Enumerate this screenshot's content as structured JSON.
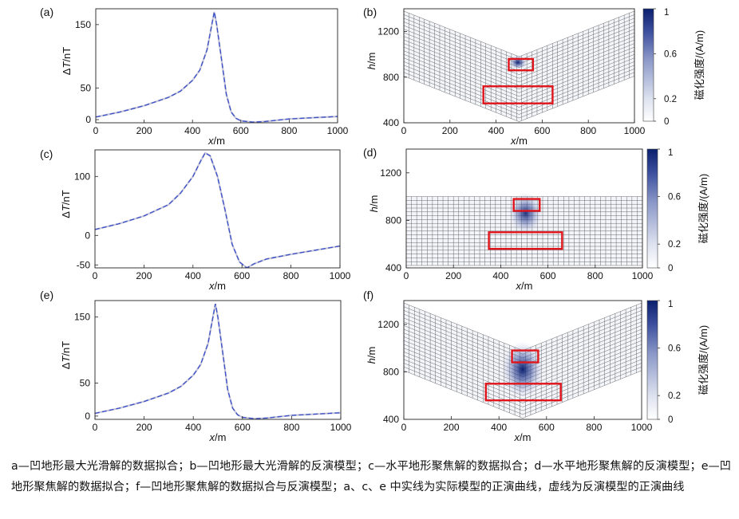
{
  "chart_data": [
    {
      "type": "line",
      "panel": "(a)",
      "xlabel": "x/m",
      "ylabel": "ΔT/nT",
      "xlim": [
        0,
        1000
      ],
      "ylim": [
        -5,
        175
      ],
      "xticks": [
        0,
        200,
        400,
        600,
        800,
        1000
      ],
      "yticks": [
        0,
        50,
        150
      ],
      "series": [
        {
          "style": "solid",
          "color": "#c8c8d8",
          "x": [
            0,
            100,
            200,
            300,
            350,
            400,
            430,
            460,
            480,
            490,
            500,
            520,
            540,
            560,
            580,
            600,
            650,
            700,
            800,
            900,
            1000
          ],
          "y": [
            4,
            12,
            22,
            35,
            45,
            62,
            78,
            110,
            150,
            170,
            150,
            95,
            40,
            12,
            2,
            -2,
            -4,
            -3,
            1,
            3,
            5
          ]
        },
        {
          "style": "dashed",
          "color": "#3a4fc8",
          "x": [
            0,
            100,
            200,
            300,
            350,
            400,
            430,
            460,
            480,
            490,
            500,
            520,
            540,
            560,
            580,
            600,
            650,
            700,
            800,
            900,
            1000
          ],
          "y": [
            4,
            12,
            22,
            35,
            45,
            62,
            78,
            110,
            150,
            170,
            150,
            95,
            40,
            12,
            2,
            -2,
            -4,
            -3,
            1,
            3,
            5
          ]
        }
      ]
    },
    {
      "type": "heatmap",
      "panel": "(b)",
      "xlabel": "x/m",
      "ylabel": "h/m",
      "xlim": [
        0,
        1000
      ],
      "ylim": [
        400,
        1400
      ],
      "xticks": [
        0,
        200,
        400,
        600,
        800,
        1000
      ],
      "yticks": [
        400,
        800,
        1200
      ],
      "mesh": "concave",
      "colorbar": {
        "label": "磁化强度/(A/m)",
        "ticks": [
          0,
          0.2,
          0.6,
          1
        ],
        "tick_labels": [
          "0",
          "0.2",
          "0.6",
          "1"
        ],
        "range": [
          0,
          1
        ]
      },
      "model_boxes": [
        {
          "x": [
            455,
            560
          ],
          "y": [
            860,
            960
          ]
        },
        {
          "x": [
            345,
            645
          ],
          "y": [
            570,
            720
          ]
        }
      ],
      "anomaly": {
        "x": 495,
        "y": 930,
        "rx": 25,
        "ry": 40,
        "peak": 1.0
      }
    },
    {
      "type": "line",
      "panel": "(c)",
      "xlabel": "x/m",
      "ylabel": "ΔT/nT",
      "xlim": [
        0,
        1000
      ],
      "ylim": [
        -55,
        145
      ],
      "xticks": [
        0,
        200,
        400,
        600,
        800,
        1000
      ],
      "yticks": [
        -50,
        0,
        100
      ],
      "series": [
        {
          "style": "solid",
          "color": "#c8c8d8",
          "x": [
            0,
            100,
            200,
            300,
            350,
            400,
            430,
            450,
            470,
            500,
            530,
            560,
            590,
            620,
            650,
            700,
            800,
            900,
            1000
          ],
          "y": [
            10,
            20,
            33,
            52,
            72,
            100,
            125,
            140,
            135,
            100,
            45,
            -15,
            -45,
            -55,
            -48,
            -40,
            -32,
            -25,
            -18
          ]
        },
        {
          "style": "dashed",
          "color": "#3a4fc8",
          "x": [
            0,
            100,
            200,
            300,
            350,
            400,
            430,
            450,
            470,
            500,
            530,
            560,
            590,
            620,
            650,
            700,
            800,
            900,
            1000
          ],
          "y": [
            10,
            20,
            33,
            52,
            72,
            100,
            125,
            140,
            135,
            100,
            45,
            -15,
            -45,
            -55,
            -48,
            -40,
            -32,
            -25,
            -18
          ]
        }
      ]
    },
    {
      "type": "heatmap",
      "panel": "(d)",
      "xlabel": "x/m",
      "ylabel": "h/m",
      "xlim": [
        0,
        1000
      ],
      "ylim": [
        400,
        1400
      ],
      "xticks": [
        0,
        200,
        400,
        600,
        800,
        1000
      ],
      "yticks": [
        400,
        800,
        1200
      ],
      "mesh": "flat",
      "colorbar": {
        "label": "磁化强度/(A/m)",
        "ticks": [
          0,
          0.2,
          0.6,
          1
        ],
        "tick_labels": [
          "0",
          "0.2",
          "0.6",
          "1"
        ],
        "range": [
          0,
          1
        ]
      },
      "model_boxes": [
        {
          "x": [
            455,
            565
          ],
          "y": [
            880,
            980
          ]
        },
        {
          "x": [
            350,
            660
          ],
          "y": [
            560,
            700
          ]
        }
      ],
      "anomaly": {
        "x": 505,
        "y": 860,
        "rx": 45,
        "ry": 110,
        "peak": 0.9
      }
    },
    {
      "type": "line",
      "panel": "(e)",
      "xlabel": "x/m",
      "ylabel": "ΔT/nT",
      "xlim": [
        0,
        1000
      ],
      "ylim": [
        -5,
        175
      ],
      "xticks": [
        0,
        200,
        400,
        600,
        800,
        1000
      ],
      "yticks": [
        0,
        50,
        150
      ],
      "series": [
        {
          "style": "solid",
          "color": "#c8c8d8",
          "x": [
            0,
            100,
            200,
            300,
            350,
            400,
            430,
            460,
            480,
            490,
            500,
            520,
            540,
            560,
            580,
            600,
            650,
            700,
            800,
            900,
            1000
          ],
          "y": [
            4,
            12,
            22,
            35,
            45,
            62,
            78,
            110,
            150,
            170,
            150,
            95,
            40,
            12,
            2,
            -2,
            -4,
            -3,
            1,
            3,
            5
          ]
        },
        {
          "style": "dashed",
          "color": "#3a4fc8",
          "x": [
            0,
            100,
            200,
            300,
            350,
            400,
            430,
            460,
            480,
            490,
            500,
            520,
            540,
            560,
            580,
            600,
            650,
            700,
            800,
            900,
            1000
          ],
          "y": [
            4,
            12,
            22,
            35,
            45,
            62,
            78,
            110,
            150,
            170,
            150,
            95,
            40,
            12,
            2,
            -2,
            -4,
            -3,
            1,
            3,
            5
          ]
        }
      ]
    },
    {
      "type": "heatmap",
      "panel": "(f)",
      "xlabel": "x/m",
      "ylabel": "h/m",
      "xlim": [
        0,
        1000
      ],
      "ylim": [
        400,
        1400
      ],
      "xticks": [
        0,
        200,
        400,
        600,
        800,
        1000
      ],
      "yticks": [
        400,
        800,
        1200
      ],
      "mesh": "concave",
      "colorbar": {
        "label": "磁化强度/(A/m)",
        "ticks": [
          0,
          0.2,
          0.6,
          1
        ],
        "tick_labels": [
          "0",
          "0.2",
          "0.6",
          "1"
        ],
        "range": [
          0,
          1
        ]
      },
      "model_boxes": [
        {
          "x": [
            455,
            565
          ],
          "y": [
            880,
            980
          ]
        },
        {
          "x": [
            345,
            660
          ],
          "y": [
            560,
            700
          ]
        }
      ],
      "anomaly": {
        "x": 500,
        "y": 820,
        "rx": 55,
        "ry": 150,
        "peak": 1.0
      }
    }
  ],
  "caption": "a—凹地形最大光滑解的数据拟合；b—凹地形最大光滑解的反演模型；c—水平地形聚焦解的数据拟合；d—水平地形聚焦解的反演模型；e—凹地形聚焦解的数据拟合；f—凹地形聚焦解的数据拟合与反演模型；a、c、e 中实线为实际模型的正演曲线，虚线为反演模型的正演曲线"
}
